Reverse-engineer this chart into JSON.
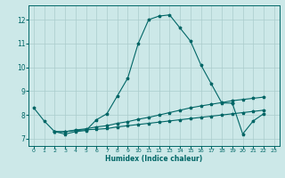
{
  "xlabel": "Humidex (Indice chaleur)",
  "bg_color": "#cce8e8",
  "grid_color": "#aacccc",
  "line_color": "#006666",
  "xlim": [
    -0.5,
    23.5
  ],
  "ylim": [
    6.7,
    12.6
  ],
  "yticks": [
    7,
    8,
    9,
    10,
    11,
    12
  ],
  "xticks": [
    0,
    1,
    2,
    3,
    4,
    5,
    6,
    7,
    8,
    9,
    10,
    11,
    12,
    13,
    14,
    15,
    16,
    17,
    18,
    19,
    20,
    21,
    22,
    23
  ],
  "lines": [
    {
      "x": [
        0,
        1,
        2,
        3,
        4,
        5,
        6,
        7,
        8,
        9,
        10,
        11,
        12,
        13,
        14,
        15,
        16,
        17,
        18,
        19
      ],
      "y": [
        8.3,
        7.75,
        7.3,
        7.2,
        7.3,
        7.35,
        7.8,
        8.05,
        8.8,
        9.55,
        11.0,
        12.0,
        12.15,
        12.2,
        11.65,
        11.1,
        10.1,
        9.3,
        8.5,
        8.5
      ]
    },
    {
      "x": [
        2,
        3,
        4,
        5,
        6,
        7,
        8,
        9,
        10,
        11,
        12,
        13,
        14,
        15,
        16,
        17,
        18,
        19,
        20,
        21,
        22
      ],
      "y": [
        7.3,
        7.3,
        7.35,
        7.38,
        7.4,
        7.43,
        7.5,
        7.55,
        7.6,
        7.65,
        7.7,
        7.75,
        7.8,
        7.85,
        7.9,
        7.95,
        8.0,
        8.05,
        8.1,
        8.15,
        8.2
      ]
    },
    {
      "x": [
        2,
        3,
        4,
        5,
        6,
        7,
        8,
        9,
        10,
        11,
        12,
        13,
        14,
        15,
        16,
        17,
        18,
        19,
        20,
        21,
        22
      ],
      "y": [
        7.3,
        7.3,
        7.37,
        7.42,
        7.5,
        7.55,
        7.65,
        7.72,
        7.82,
        7.9,
        8.0,
        8.1,
        8.2,
        8.3,
        8.38,
        8.45,
        8.52,
        8.6,
        8.65,
        8.7,
        8.75
      ]
    },
    {
      "x": [
        19,
        20,
        21,
        22
      ],
      "y": [
        8.5,
        7.2,
        7.75,
        8.05
      ]
    }
  ]
}
